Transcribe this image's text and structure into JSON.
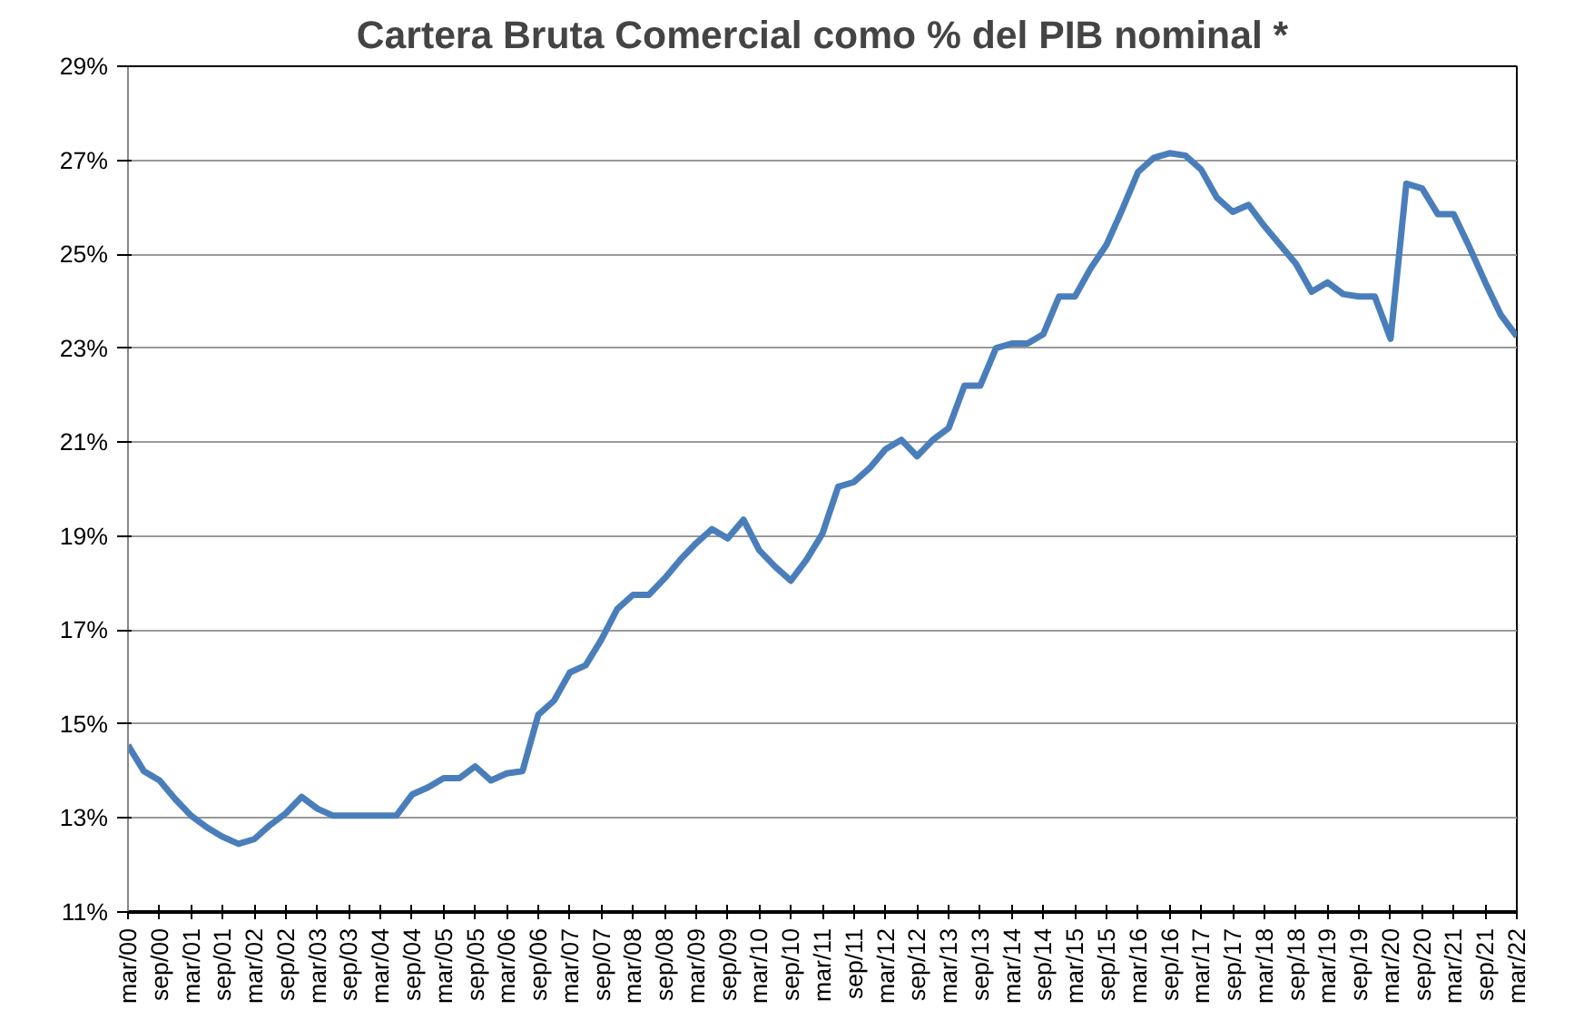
{
  "chart_data": {
    "type": "line",
    "title": "Cartera Bruta Comercial como % del PIB nominal *",
    "categories": [
      "mar/00",
      null,
      "sep/00",
      null,
      "mar/01",
      null,
      "sep/01",
      null,
      "mar/02",
      null,
      "sep/02",
      null,
      "mar/03",
      null,
      "sep/03",
      null,
      "mar/04",
      null,
      "sep/04",
      null,
      "mar/05",
      null,
      "sep/05",
      null,
      "mar/06",
      null,
      "sep/06",
      null,
      "mar/07",
      null,
      "sep/07",
      null,
      "mar/08",
      null,
      "sep/08",
      null,
      "mar/09",
      null,
      "sep/09",
      null,
      "mar/10",
      null,
      "sep/10",
      null,
      "mar/11",
      null,
      "sep/11",
      null,
      "mar/12",
      null,
      "sep/12",
      null,
      "mar/13",
      null,
      "sep/13",
      null,
      "mar/14",
      null,
      "sep/14",
      null,
      "mar/15",
      null,
      "sep/15",
      null,
      "mar/16",
      null,
      "sep/16",
      null,
      "mar/17",
      null,
      "sep/17",
      null,
      "mar/18",
      null,
      "sep/18",
      null,
      "mar/19",
      null,
      "sep/19",
      null,
      "mar/20",
      null,
      "sep/20",
      null,
      "mar/21",
      null,
      "sep/21",
      null,
      "mar/22"
    ],
    "series": [
      {
        "color": "#4a7ebb",
        "values": [
          14.55,
          14.0,
          13.8,
          13.4,
          13.05,
          12.8,
          12.6,
          12.45,
          12.55,
          12.85,
          13.1,
          13.45,
          13.2,
          13.05,
          13.05,
          13.05,
          13.05,
          13.05,
          13.5,
          13.65,
          13.85,
          13.85,
          14.1,
          13.8,
          13.95,
          14.0,
          15.2,
          15.5,
          16.1,
          16.25,
          16.8,
          17.45,
          17.75,
          17.75,
          18.1,
          18.5,
          18.85,
          19.15,
          18.95,
          19.35,
          18.7,
          18.35,
          18.05,
          18.5,
          19.05,
          20.05,
          20.15,
          20.45,
          20.85,
          21.05,
          20.7,
          21.05,
          21.3,
          22.2,
          22.2,
          23.0,
          23.1,
          23.1,
          23.3,
          24.1,
          24.1,
          24.7,
          25.2,
          25.95,
          26.75,
          27.05,
          27.15,
          27.1,
          26.8,
          26.2,
          25.9,
          26.05,
          25.6,
          25.2,
          24.8,
          24.2,
          24.4,
          24.15,
          24.1,
          24.1,
          23.2,
          26.5,
          26.4,
          25.85,
          25.85,
          25.15,
          24.4,
          23.7,
          23.25
        ]
      }
    ],
    "ylim": [
      11,
      29
    ],
    "yticks": [
      {
        "value": 11,
        "label": "11%"
      },
      {
        "value": 13,
        "label": "13%"
      },
      {
        "value": 15,
        "label": "15%"
      },
      {
        "value": 17,
        "label": "17%"
      },
      {
        "value": 19,
        "label": "19%"
      },
      {
        "value": 21,
        "label": "21%"
      },
      {
        "value": 23,
        "label": "23%"
      },
      {
        "value": 25,
        "label": "25%"
      },
      {
        "value": 27,
        "label": "27%"
      },
      {
        "value": 29,
        "label": "29%"
      }
    ],
    "grid": "y",
    "marker": "none",
    "line_style": "solid"
  }
}
